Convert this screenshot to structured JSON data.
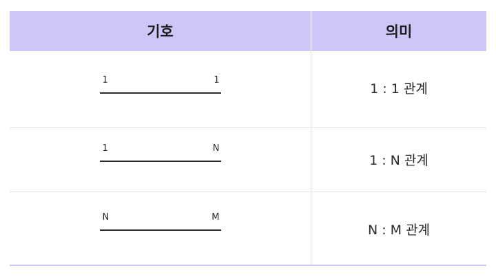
{
  "header": {
    "symbol": "기호",
    "meaning": "의미"
  },
  "rows": [
    {
      "left": "1",
      "right": "1",
      "meaning": "1 : 1 관계"
    },
    {
      "left": "1",
      "right": "N",
      "meaning": "1 : N 관계"
    },
    {
      "left": "N",
      "right": "M",
      "meaning": "N : M 관계"
    }
  ],
  "colors": {
    "header_bg": "#cfc6f7",
    "line": "#2b2b2b",
    "bottom_border": "#cbc4f2"
  }
}
